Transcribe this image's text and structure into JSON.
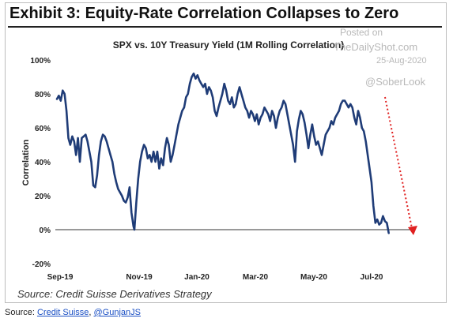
{
  "header": {
    "exhibit_title": "Exhibit 3: Equity-Rate Correlation Collapses to Zero"
  },
  "watermark": {
    "line1": "Posted on",
    "line2": "TheDailyShot.com",
    "date": "25-Aug-2020",
    "handle": "@SoberLook"
  },
  "source_note": "Source: Credit Suisse Derivatives Strategy",
  "footer": {
    "prefix": "Source: ",
    "link1": "Credit Suisse",
    "separator": ", ",
    "link2": "@GunjanJS"
  },
  "colors": {
    "line": "#1f3c77",
    "arrow": "#e02020",
    "axis": "#333333"
  },
  "chart_data": {
    "type": "line",
    "title": "SPX vs. 10Y Treasury Yield (1M Rolling Correlation)",
    "xlabel": "",
    "ylabel": "Correlation",
    "ylim": [
      -20,
      100
    ],
    "yticks": [
      -20,
      0,
      20,
      40,
      60,
      80,
      100
    ],
    "ytick_labels": [
      "-20%",
      "0%",
      "20%",
      "40%",
      "60%",
      "80%",
      "100%"
    ],
    "xtick_labels": [
      "Sep-19",
      "Nov-19",
      "Jan-20",
      "Mar-20",
      "May-20",
      "Jul-20"
    ],
    "x_domain": [
      "2019-09-01",
      "2020-08-24"
    ],
    "annotation": "red dotted arrow pointing down toward 0% at the end of the series",
    "series": [
      {
        "points": [
          [
            "2019-09-01",
            77
          ],
          [
            "2019-09-03",
            79
          ],
          [
            "2019-09-05",
            76
          ],
          [
            "2019-09-07",
            82
          ],
          [
            "2019-09-09",
            80
          ],
          [
            "2019-09-11",
            70
          ],
          [
            "2019-09-13",
            54
          ],
          [
            "2019-09-15",
            50
          ],
          [
            "2019-09-17",
            55
          ],
          [
            "2019-09-19",
            52
          ],
          [
            "2019-09-21",
            44
          ],
          [
            "2019-09-23",
            54
          ],
          [
            "2019-09-25",
            40
          ],
          [
            "2019-09-27",
            54
          ],
          [
            "2019-09-29",
            55
          ],
          [
            "2019-10-01",
            56
          ],
          [
            "2019-10-03",
            52
          ],
          [
            "2019-10-05",
            46
          ],
          [
            "2019-10-07",
            40
          ],
          [
            "2019-10-09",
            26
          ],
          [
            "2019-10-11",
            25
          ],
          [
            "2019-10-13",
            32
          ],
          [
            "2019-10-15",
            44
          ],
          [
            "2019-10-17",
            52
          ],
          [
            "2019-10-19",
            56
          ],
          [
            "2019-10-21",
            55
          ],
          [
            "2019-10-23",
            52
          ],
          [
            "2019-10-25",
            48
          ],
          [
            "2019-10-27",
            44
          ],
          [
            "2019-10-29",
            40
          ],
          [
            "2019-10-31",
            33
          ],
          [
            "2019-11-02",
            28
          ],
          [
            "2019-11-04",
            24
          ],
          [
            "2019-11-06",
            22
          ],
          [
            "2019-11-08",
            20
          ],
          [
            "2019-11-10",
            17
          ],
          [
            "2019-11-12",
            16
          ],
          [
            "2019-11-14",
            19
          ],
          [
            "2019-11-16",
            25
          ],
          [
            "2019-11-18",
            10
          ],
          [
            "2019-11-20",
            2
          ],
          [
            "2019-11-21",
            0
          ],
          [
            "2019-11-23",
            16
          ],
          [
            "2019-11-25",
            30
          ],
          [
            "2019-11-27",
            40
          ],
          [
            "2019-11-29",
            46
          ],
          [
            "2019-12-01",
            50
          ],
          [
            "2019-12-03",
            48
          ],
          [
            "2019-12-05",
            42
          ],
          [
            "2019-12-07",
            44
          ],
          [
            "2019-12-09",
            40
          ],
          [
            "2019-12-11",
            46
          ],
          [
            "2019-12-13",
            40
          ],
          [
            "2019-12-15",
            46
          ],
          [
            "2019-12-17",
            36
          ],
          [
            "2019-12-19",
            42
          ],
          [
            "2019-12-21",
            38
          ],
          [
            "2019-12-23",
            48
          ],
          [
            "2019-12-25",
            54
          ],
          [
            "2019-12-27",
            50
          ],
          [
            "2019-12-29",
            40
          ],
          [
            "2019-12-31",
            44
          ],
          [
            "2020-01-02",
            50
          ],
          [
            "2020-01-04",
            56
          ],
          [
            "2020-01-06",
            62
          ],
          [
            "2020-01-08",
            66
          ],
          [
            "2020-01-10",
            70
          ],
          [
            "2020-01-12",
            72
          ],
          [
            "2020-01-14",
            78
          ],
          [
            "2020-01-16",
            80
          ],
          [
            "2020-01-18",
            86
          ],
          [
            "2020-01-20",
            90
          ],
          [
            "2020-01-22",
            92
          ],
          [
            "2020-01-24",
            89
          ],
          [
            "2020-01-26",
            91
          ],
          [
            "2020-01-28",
            88
          ],
          [
            "2020-01-30",
            86
          ],
          [
            "2020-02-01",
            84
          ],
          [
            "2020-02-03",
            86
          ],
          [
            "2020-02-05",
            80
          ],
          [
            "2020-02-07",
            84
          ],
          [
            "2020-02-09",
            82
          ],
          [
            "2020-02-11",
            78
          ],
          [
            "2020-02-13",
            70
          ],
          [
            "2020-02-15",
            67
          ],
          [
            "2020-02-17",
            72
          ],
          [
            "2020-02-19",
            76
          ],
          [
            "2020-02-21",
            80
          ],
          [
            "2020-02-23",
            86
          ],
          [
            "2020-02-25",
            82
          ],
          [
            "2020-02-27",
            76
          ],
          [
            "2020-02-29",
            74
          ],
          [
            "2020-03-02",
            78
          ],
          [
            "2020-03-04",
            72
          ],
          [
            "2020-03-06",
            74
          ],
          [
            "2020-03-08",
            80
          ],
          [
            "2020-03-10",
            84
          ],
          [
            "2020-03-12",
            80
          ],
          [
            "2020-03-14",
            76
          ],
          [
            "2020-03-16",
            72
          ],
          [
            "2020-03-18",
            70
          ],
          [
            "2020-03-20",
            66
          ],
          [
            "2020-03-22",
            70
          ],
          [
            "2020-03-24",
            68
          ],
          [
            "2020-03-26",
            64
          ],
          [
            "2020-03-28",
            68
          ],
          [
            "2020-03-30",
            62
          ],
          [
            "2020-04-01",
            66
          ],
          [
            "2020-04-03",
            68
          ],
          [
            "2020-04-05",
            72
          ],
          [
            "2020-04-07",
            70
          ],
          [
            "2020-04-09",
            68
          ],
          [
            "2020-04-11",
            64
          ],
          [
            "2020-04-13",
            70
          ],
          [
            "2020-04-15",
            67
          ],
          [
            "2020-04-17",
            60
          ],
          [
            "2020-04-19",
            66
          ],
          [
            "2020-04-21",
            70
          ],
          [
            "2020-04-23",
            72
          ],
          [
            "2020-04-25",
            76
          ],
          [
            "2020-04-27",
            74
          ],
          [
            "2020-04-29",
            68
          ],
          [
            "2020-05-01",
            62
          ],
          [
            "2020-05-03",
            56
          ],
          [
            "2020-05-05",
            50
          ],
          [
            "2020-05-07",
            40
          ],
          [
            "2020-05-09",
            58
          ],
          [
            "2020-05-11",
            65
          ],
          [
            "2020-05-13",
            70
          ],
          [
            "2020-05-15",
            68
          ],
          [
            "2020-05-17",
            63
          ],
          [
            "2020-05-19",
            56
          ],
          [
            "2020-05-21",
            48
          ],
          [
            "2020-05-23",
            56
          ],
          [
            "2020-05-25",
            62
          ],
          [
            "2020-05-27",
            55
          ],
          [
            "2020-05-29",
            50
          ],
          [
            "2020-05-31",
            52
          ],
          [
            "2020-06-02",
            48
          ],
          [
            "2020-06-04",
            44
          ],
          [
            "2020-06-06",
            50
          ],
          [
            "2020-06-08",
            56
          ],
          [
            "2020-06-10",
            58
          ],
          [
            "2020-06-12",
            60
          ],
          [
            "2020-06-14",
            64
          ],
          [
            "2020-06-16",
            62
          ],
          [
            "2020-06-18",
            66
          ],
          [
            "2020-06-20",
            68
          ],
          [
            "2020-06-22",
            70
          ],
          [
            "2020-06-24",
            74
          ],
          [
            "2020-06-26",
            76
          ],
          [
            "2020-06-28",
            76
          ],
          [
            "2020-06-30",
            74
          ],
          [
            "2020-07-02",
            72
          ],
          [
            "2020-07-04",
            74
          ],
          [
            "2020-07-06",
            72
          ],
          [
            "2020-07-08",
            66
          ],
          [
            "2020-07-10",
            62
          ],
          [
            "2020-07-12",
            70
          ],
          [
            "2020-07-14",
            66
          ],
          [
            "2020-07-16",
            60
          ],
          [
            "2020-07-18",
            58
          ],
          [
            "2020-07-20",
            52
          ],
          [
            "2020-07-22",
            44
          ],
          [
            "2020-07-24",
            36
          ],
          [
            "2020-07-26",
            28
          ],
          [
            "2020-07-28",
            14
          ],
          [
            "2020-07-30",
            4
          ],
          [
            "2020-08-01",
            6
          ],
          [
            "2020-08-03",
            3
          ],
          [
            "2020-08-05",
            4
          ],
          [
            "2020-08-07",
            8
          ],
          [
            "2020-08-09",
            5
          ],
          [
            "2020-08-11",
            4
          ],
          [
            "2020-08-13",
            -2
          ]
        ]
      }
    ]
  }
}
